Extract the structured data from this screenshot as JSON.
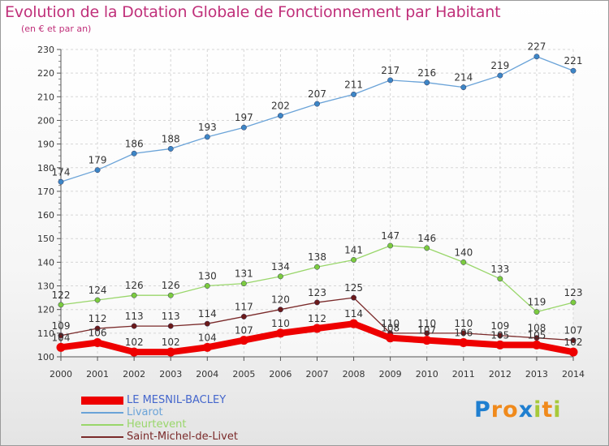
{
  "title": "Evolution de la Dotation Globale de Fonctionnement par Habitant",
  "subtitle": "(en € et par an)",
  "logo": {
    "text": "Proxiti",
    "letters": [
      {
        "ch": "P",
        "color": "#1f7fd0"
      },
      {
        "ch": "r",
        "color": "#f08a1c"
      },
      {
        "ch": "o",
        "color": "#f08a1c"
      },
      {
        "ch": "x",
        "color": "#1f7fd0"
      },
      {
        "ch": "i",
        "color": "#a7c93a"
      },
      {
        "ch": "t",
        "color": "#f08a1c"
      },
      {
        "ch": "i",
        "color": "#a7c93a"
      }
    ]
  },
  "chart_data": {
    "type": "line",
    "x": [
      2000,
      2001,
      2002,
      2003,
      2004,
      2005,
      2006,
      2007,
      2008,
      2009,
      2010,
      2011,
      2012,
      2013,
      2014
    ],
    "ylim": [
      100,
      230
    ],
    "yticks": [
      100,
      110,
      120,
      130,
      140,
      150,
      160,
      170,
      180,
      190,
      200,
      210,
      220,
      230
    ],
    "grid": true,
    "legend_position": "bottom-left",
    "series": [
      {
        "name": "LE MESNIL-BACLEY",
        "color": "#ee0000",
        "label_color": "#4466cc",
        "marker": "#ee0000",
        "values": [
          104,
          106,
          102,
          102,
          104,
          107,
          110,
          112,
          114,
          108,
          107,
          106,
          105,
          105,
          102
        ]
      },
      {
        "name": "Livarot",
        "color": "#6aa3d8",
        "label_color": "#6aa3d8",
        "marker": "#3d86c6",
        "values": [
          174,
          179,
          186,
          188,
          193,
          197,
          202,
          207,
          211,
          217,
          216,
          214,
          219,
          227,
          221
        ]
      },
      {
        "name": "Heurtevent",
        "color": "#99d66a",
        "label_color": "#99d66a",
        "marker": "#7ccb3f",
        "values": [
          122,
          124,
          126,
          126,
          130,
          131,
          134,
          138,
          141,
          147,
          146,
          140,
          133,
          119,
          123
        ]
      },
      {
        "name": "Saint-Michel-de-Livet",
        "color": "#7a2a2a",
        "label_color": "#7a2a2a",
        "marker": "#6b1a1a",
        "values": [
          109,
          112,
          113,
          113,
          114,
          117,
          120,
          123,
          125,
          110,
          110,
          110,
          109,
          108,
          107
        ]
      }
    ]
  }
}
